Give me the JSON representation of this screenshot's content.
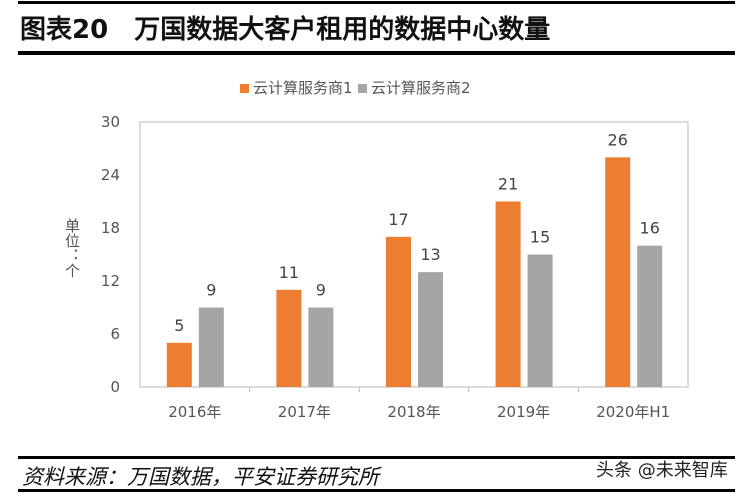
{
  "header": {
    "figure_number": "图表20",
    "title": "万国数据大客户租用的数据中心数量"
  },
  "footer": {
    "source": "资料来源：万国数据，平安证券研究所",
    "watermark": "头条 @未来智库"
  },
  "chart_data": {
    "type": "bar",
    "title": "",
    "ylabel": "单位：个",
    "xlabel": "",
    "categories": [
      "2016年",
      "2017年",
      "2018年",
      "2019年",
      "2020年H1"
    ],
    "series": [
      {
        "name": "云计算服务商1",
        "values": [
          5,
          11,
          17,
          21,
          26
        ],
        "color": "#ED7D31"
      },
      {
        "name": "云计算服务商2",
        "values": [
          9,
          9,
          13,
          15,
          16
        ],
        "color": "#A5A5A5"
      }
    ],
    "ylim": [
      0,
      30
    ],
    "yticks": [
      0,
      6,
      12,
      18,
      24,
      30
    ],
    "grid": false,
    "legend": "top",
    "data_labels": true
  }
}
